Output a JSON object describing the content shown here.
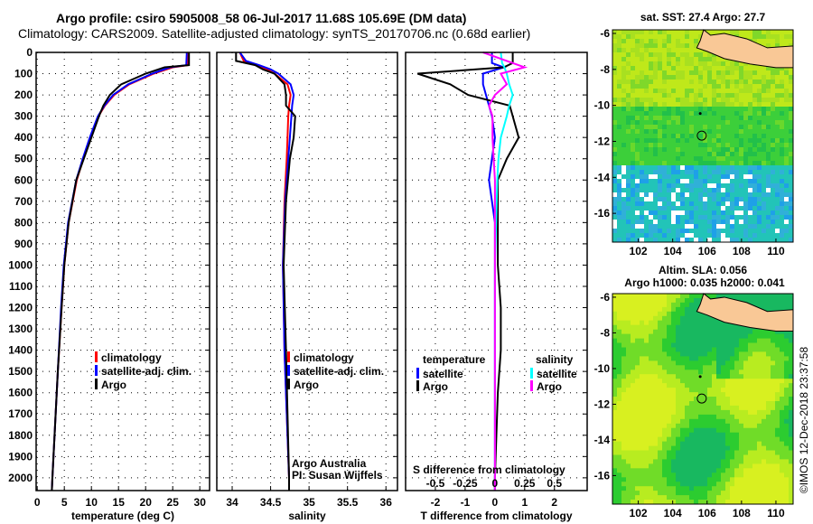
{
  "title_line1": "Argo profile: csiro 5905008_58 06-Jul-2017 11.68S 105.69E (DM data)",
  "title_line2": "Climatology: CARS2009. Satellite-adjusted climatology: synTS_20170706.nc (0.68d earlier)",
  "map_top_title": "sat. SST: 27.4 Argo: 27.7",
  "map_bottom_title1": "Altim. SLA: 0.056",
  "map_bottom_title2": "Argo h1000: 0.035 h2000: 0.041",
  "credit": "©IMOS 12-Dec-2018 23:37:58",
  "attribution1": "Argo Australia",
  "attribution2": "PI: Susan Wijffels",
  "colors": {
    "climatology": "#ff0000",
    "satellite": "#0000ff",
    "argo": "#000000",
    "sal_sat": "#00ffff",
    "sal_argo": "#ff00ff",
    "land": "#f9c896"
  },
  "chart_data": [
    {
      "type": "line",
      "xlabel": "temperature (deg C)",
      "ylabel": "depth",
      "xlim": [
        -0.2,
        31.8
      ],
      "ylim": [
        2060,
        0
      ],
      "xticks": [
        "0",
        "5",
        "10",
        "15",
        "20",
        "25",
        "30"
      ],
      "xtickvals": [
        0,
        5,
        10,
        15,
        20,
        25,
        30
      ],
      "yticks": [
        "0",
        "100",
        "200",
        "300",
        "400",
        "500",
        "600",
        "700",
        "800",
        "900",
        "1000",
        "1100",
        "1200",
        "1300",
        "1400",
        "1500",
        "1600",
        "1700",
        "1800",
        "1900",
        "2000"
      ],
      "legend": [
        "climatology",
        "satellite-adj. clim.",
        "Argo"
      ],
      "depth": [
        0,
        60,
        70,
        100,
        150,
        200,
        250,
        300,
        400,
        500,
        600,
        800,
        1000,
        1200,
        1500,
        2000,
        2060
      ],
      "series": [
        {
          "name": "climatology",
          "values": [
            27.8,
            27.8,
            25,
            21.5,
            17,
            14.2,
            12.5,
            11.3,
            9.8,
            8.5,
            7.3,
            5.8,
            5.0,
            4.5,
            3.8,
            2.8,
            2.7
          ]
        },
        {
          "name": "satellite-adj. clim.",
          "values": [
            27.6,
            27.5,
            24.5,
            21.2,
            16.8,
            14.0,
            12.4,
            11.2,
            9.7,
            8.4,
            7.2,
            5.7,
            4.9,
            4.4,
            3.8,
            2.8,
            2.7
          ]
        },
        {
          "name": "Argo",
          "values": [
            28.0,
            28.0,
            23.5,
            20,
            15.5,
            13.4,
            12.2,
            11.4,
            10.0,
            8.6,
            7.2,
            5.8,
            5.0,
            4.5,
            3.8,
            2.8,
            2.7
          ]
        }
      ]
    },
    {
      "type": "line",
      "xlabel": "salinity",
      "xlim": [
        33.8,
        36.15
      ],
      "ylim": [
        2060,
        0
      ],
      "xticks": [
        "34",
        "34.5",
        "35",
        "35.5",
        "36"
      ],
      "xtickvals": [
        34,
        34.5,
        35,
        35.5,
        36
      ],
      "legend": [
        "climatology",
        "satellite-adj. clim.",
        "Argo"
      ],
      "depth": [
        0,
        40,
        60,
        80,
        100,
        150,
        200,
        250,
        300,
        400,
        500,
        700,
        1000,
        1400,
        2000,
        2060
      ],
      "series": [
        {
          "name": "climatology",
          "values": [
            34.1,
            34.15,
            34.3,
            34.45,
            34.55,
            34.72,
            34.76,
            34.74,
            34.73,
            34.72,
            34.71,
            34.68,
            34.66,
            34.68,
            34.74,
            34.74
          ]
        },
        {
          "name": "satellite-adj. clim.",
          "values": [
            34.1,
            34.18,
            34.35,
            34.5,
            34.6,
            34.76,
            34.8,
            34.78,
            34.77,
            34.75,
            34.73,
            34.69,
            34.66,
            34.68,
            34.74,
            34.74
          ]
        },
        {
          "name": "Argo",
          "values": [
            34.05,
            34.05,
            34.3,
            34.4,
            34.55,
            34.68,
            34.7,
            34.7,
            34.82,
            34.8,
            34.75,
            34.7,
            34.67,
            34.7,
            34.74,
            34.74
          ]
        }
      ]
    },
    {
      "type": "line",
      "xlabel": "T difference from climatology",
      "xlabel2": "S difference from climatology",
      "xlim": [
        -3,
        3.1
      ],
      "ylim": [
        2060,
        0
      ],
      "xticks": [
        "-2",
        "-1",
        "0",
        "1",
        "2"
      ],
      "xtickvals": [
        -2,
        -1,
        0,
        1,
        2
      ],
      "x2ticks": [
        "-0.5",
        "-0.25",
        "0",
        "0.25",
        "0.5"
      ],
      "x2tickvals": [
        -0.5,
        -0.25,
        0,
        0.25,
        0.5
      ],
      "legend_t_title": "temperature",
      "legend_s_title": "salinity",
      "legend": [
        "satellite",
        "Argo",
        "satellite",
        "Argo"
      ],
      "depth": [
        0,
        50,
        70,
        100,
        150,
        200,
        250,
        300,
        400,
        500,
        600,
        800,
        1000,
        1200,
        1400,
        1600,
        2000,
        2060
      ],
      "series": [
        {
          "name": "T satellite",
          "values": [
            -0.1,
            -0.1,
            0.3,
            -0.4,
            -0.4,
            -0.3,
            -0.2,
            -0.1,
            0,
            -0.1,
            -0.2,
            0,
            0,
            0,
            0,
            0,
            0,
            0
          ]
        },
        {
          "name": "T Argo",
          "values": [
            0.6,
            0.6,
            0.3,
            -2.6,
            -1.5,
            -0.9,
            0.5,
            0.6,
            0.8,
            0.4,
            0.1,
            0.1,
            0.1,
            0.2,
            0.2,
            0.1,
            0,
            0
          ]
        },
        {
          "name": "S satellite",
          "values": [
            0.05,
            0.06,
            0.08,
            0.1,
            0.12,
            0.15,
            0.12,
            0.1,
            0.05,
            0.03,
            0.02,
            0.01,
            0,
            0,
            0,
            0,
            0,
            0
          ]
        },
        {
          "name": "S Argo",
          "values": [
            -0.1,
            0.15,
            0.25,
            0.05,
            0.1,
            0.0,
            -0.05,
            -0.02,
            -0.02,
            -0.01,
            0,
            0,
            0,
            0,
            0,
            0,
            0,
            0
          ]
        }
      ]
    }
  ],
  "maps": [
    {
      "xticks": [
        "102",
        "104",
        "106",
        "108",
        "110"
      ],
      "yticks": [
        "-6",
        "-8",
        "-10",
        "-12",
        "-14",
        "-16"
      ]
    },
    {
      "xticks": [
        "102",
        "104",
        "106",
        "108",
        "110"
      ],
      "yticks": [
        "-6",
        "-8",
        "-10",
        "-12",
        "-14",
        "-16"
      ]
    }
  ]
}
